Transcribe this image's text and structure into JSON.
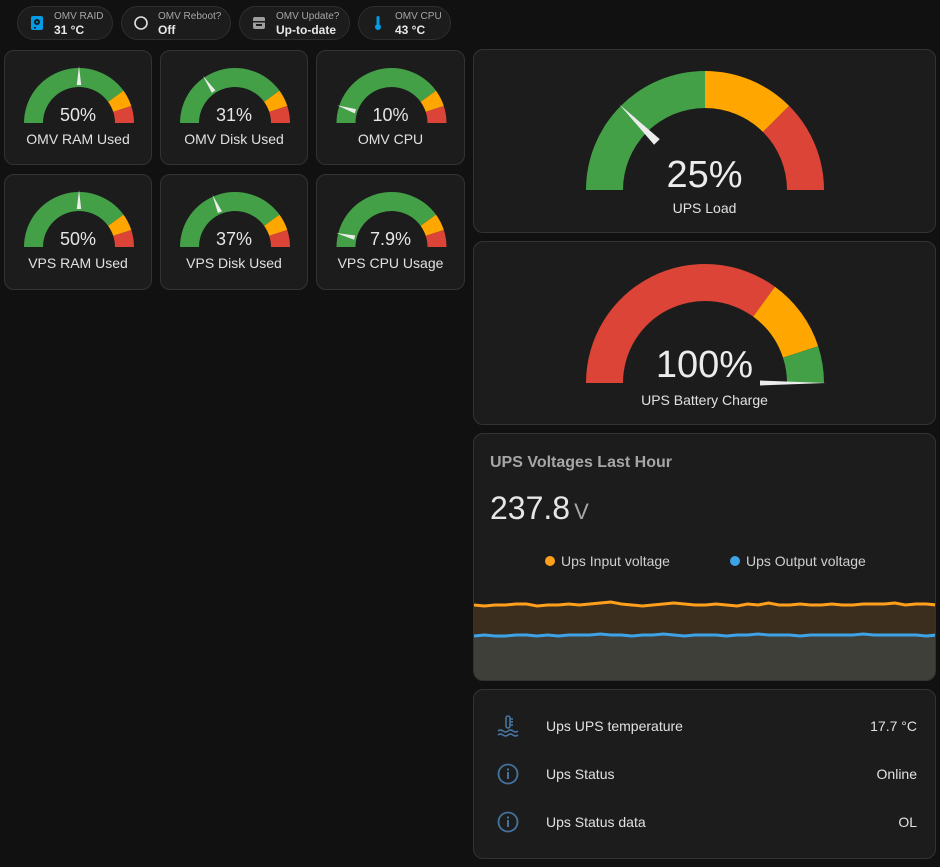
{
  "chips": [
    {
      "label": "OMV RAID",
      "value": "31 °C",
      "icon": "harddisk-icon"
    },
    {
      "label": "OMV Reboot?",
      "value": "Off",
      "icon": "circle-outline-icon"
    },
    {
      "label": "OMV Update?",
      "value": "Up-to-date",
      "icon": "package-icon"
    },
    {
      "label": "OMV CPU",
      "value": "43 °C",
      "icon": "thermometer-icon"
    }
  ],
  "small_gauges": [
    {
      "name": "OMV RAM Used",
      "display": "50%",
      "value": 50
    },
    {
      "name": "OMV Disk Used",
      "display": "31%",
      "value": 31
    },
    {
      "name": "OMV CPU",
      "display": "10%",
      "value": 10
    },
    {
      "name": "VPS RAM Used",
      "display": "50%",
      "value": 50
    },
    {
      "name": "VPS Disk Used",
      "display": "37%",
      "value": 37
    },
    {
      "name": "VPS CPU Usage",
      "display": "7.9%",
      "value": 7.9
    }
  ],
  "ups_load": {
    "name": "UPS Load",
    "display": "25%",
    "value": 25
  },
  "ups_battery": {
    "name": "UPS Battery Charge",
    "display": "100%",
    "value": 100
  },
  "voltage_graph": {
    "title": "UPS Voltages Last Hour",
    "state": "237.8",
    "unit": "V",
    "legend": [
      {
        "name": "Ups Input voltage",
        "color": "#ff9f1c"
      },
      {
        "name": "Ups Output voltage",
        "color": "#3ea2e6"
      }
    ]
  },
  "entities": [
    {
      "name": "Ups UPS temperature",
      "value": "17.7 °C",
      "icon": "thermometer-water-icon"
    },
    {
      "name": "Ups Status",
      "value": "Online",
      "icon": "information-outline-icon"
    },
    {
      "name": "Ups Status data",
      "value": "OL",
      "icon": "information-outline-icon"
    }
  ],
  "colors": {
    "green": "#43a047",
    "yellow": "#ffa600",
    "red": "#db4437",
    "input_line": "#ff9f1c",
    "output_line": "#3ea2e6",
    "icon": "#44739e"
  }
}
